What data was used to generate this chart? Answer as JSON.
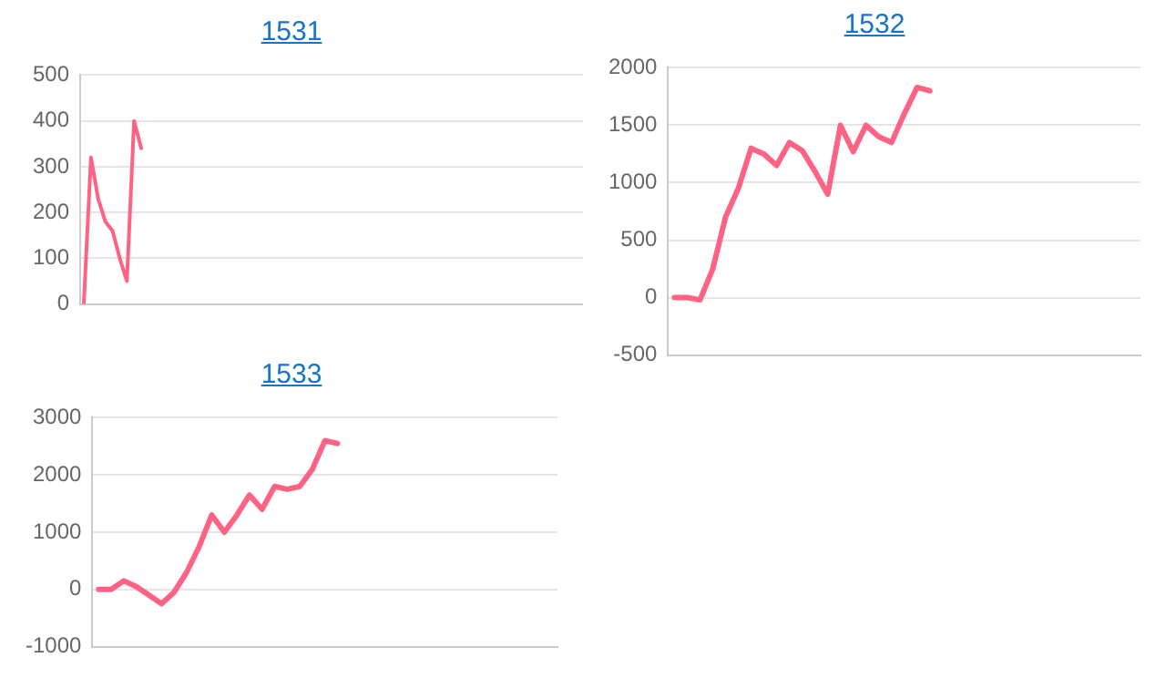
{
  "chart_data": [
    {
      "type": "line",
      "title": "1531",
      "color": "#ff6384",
      "grid": "y",
      "legend": false,
      "marker": "none",
      "tick_labels": "y",
      "categories": [
        null,
        null,
        null,
        null,
        null,
        null,
        null,
        null,
        null,
        null,
        null,
        null,
        null,
        null,
        null,
        null,
        null,
        null,
        null,
        null,
        null,
        null,
        null,
        null,
        null,
        null,
        null,
        null,
        null,
        null,
        null,
        null,
        null,
        null,
        null,
        null,
        null,
        null,
        null,
        null,
        null,
        null,
        null,
        null,
        null,
        null,
        null,
        null,
        null,
        null,
        null,
        null,
        null,
        null,
        null,
        null,
        null,
        null,
        null,
        null,
        null,
        null,
        null,
        null,
        null,
        null,
        null,
        null,
        null,
        null
      ],
      "values": [
        0,
        320,
        230,
        180,
        160,
        100,
        50,
        400,
        340,
        null,
        null,
        null,
        null,
        null,
        null,
        null,
        null,
        null,
        null,
        null,
        null,
        null,
        null,
        null,
        null,
        null,
        null,
        null,
        null,
        null,
        null,
        null,
        null,
        null,
        null,
        null,
        null,
        null,
        null,
        null,
        null,
        null,
        null,
        null,
        null,
        null,
        null,
        null,
        null,
        null,
        null,
        null,
        null,
        null,
        null,
        null,
        null,
        null,
        null,
        null,
        null,
        null,
        null,
        null,
        null,
        null,
        null,
        null,
        null,
        null
      ],
      "ylim": [
        0,
        500
      ],
      "yticks": [
        0,
        100,
        200,
        300,
        400,
        500
      ]
    },
    {
      "type": "line",
      "title": "1532",
      "color": "#ff6384",
      "grid": "y",
      "legend": false,
      "marker": "none",
      "tick_labels": "y",
      "categories": [
        null,
        null,
        null,
        null,
        null,
        null,
        null,
        null,
        null,
        null,
        null,
        null,
        null,
        null,
        null,
        null,
        null,
        null,
        null,
        null,
        null,
        null,
        null,
        null,
        null,
        null,
        null,
        null,
        null,
        null,
        null,
        null,
        null,
        null,
        null,
        null,
        null
      ],
      "values": [
        0,
        0,
        -20,
        250,
        700,
        950,
        1300,
        1250,
        1150,
        1350,
        1280,
        1100,
        900,
        1500,
        1270,
        1500,
        1400,
        1350,
        1600,
        1830,
        1800,
        null,
        null,
        null,
        null,
        null,
        null,
        null,
        null,
        null,
        null,
        null,
        null,
        null,
        null,
        null,
        null
      ],
      "ylim": [
        -500,
        2000
      ],
      "yticks": [
        -500,
        0,
        500,
        1000,
        1500,
        2000
      ]
    },
    {
      "type": "line",
      "title": "1533",
      "color": "#ff6384",
      "grid": "y",
      "legend": false,
      "marker": "none",
      "tick_labels": "y",
      "categories": [
        null,
        null,
        null,
        null,
        null,
        null,
        null,
        null,
        null,
        null,
        null,
        null,
        null,
        null,
        null,
        null,
        null,
        null,
        null,
        null,
        null,
        null,
        null,
        null,
        null,
        null,
        null,
        null,
        null,
        null,
        null,
        null,
        null,
        null,
        null,
        null,
        null
      ],
      "values": [
        0,
        0,
        150,
        50,
        -100,
        -250,
        -50,
        300,
        750,
        1300,
        1000,
        1300,
        1650,
        1400,
        1800,
        1750,
        1800,
        2100,
        2600,
        2550,
        null,
        null,
        null,
        null,
        null,
        null,
        null,
        null,
        null,
        null,
        null,
        null,
        null,
        null,
        null,
        null,
        null
      ],
      "ylim": [
        -1000,
        3000
      ],
      "yticks": [
        -1000,
        0,
        1000,
        2000,
        3000
      ]
    }
  ]
}
